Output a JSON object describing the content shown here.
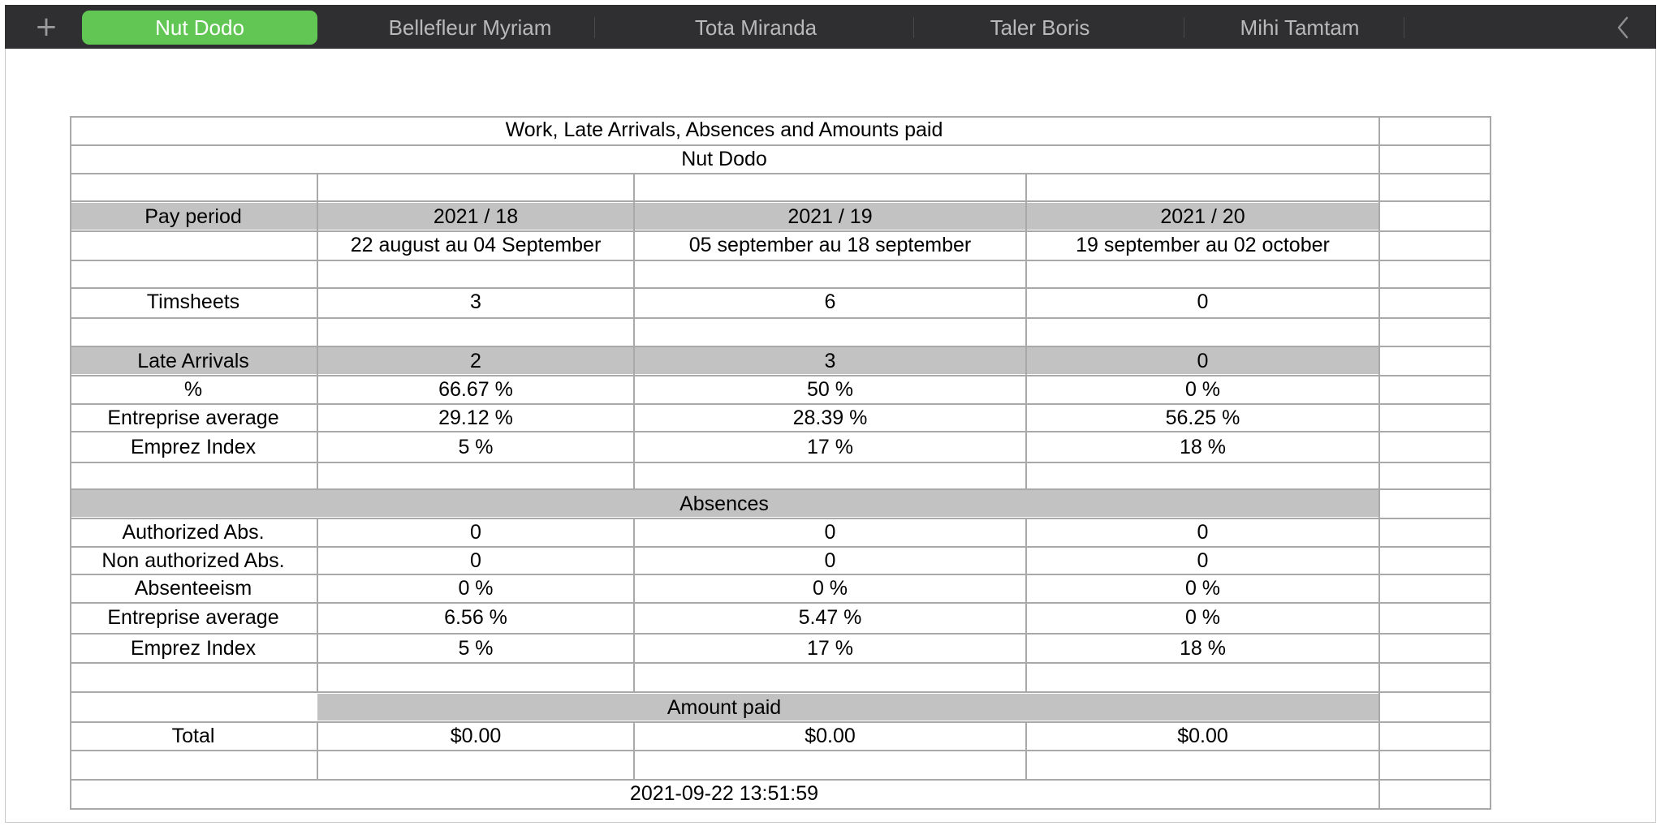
{
  "tabs": {
    "add_symbol": "+",
    "items": [
      "Nut Dodo",
      "Bellefleur Myriam",
      "Tota Miranda",
      "Taler Boris",
      "Mihi Tamtam"
    ],
    "active_index": 0
  },
  "report": {
    "title": "Work, Late Arrivals, Absences and Amounts paid",
    "employee": "Nut Dodo",
    "pay_period_label": "Pay period",
    "periods": [
      {
        "code": "2021 / 18",
        "range": "22 august  au 04 September"
      },
      {
        "code": "2021 / 19",
        "range": "05 september  au 18 september"
      },
      {
        "code": "2021 / 20",
        "range": "19 september  au 02 october"
      }
    ],
    "timesheets": {
      "label": "Timsheets",
      "values": [
        "3",
        "6",
        "0"
      ]
    },
    "late": {
      "label": "Late Arrivals",
      "values": [
        "2",
        "3",
        "0"
      ],
      "pct_label": "%",
      "pct": [
        "66.67 %",
        "50 %",
        "0 %"
      ],
      "avg_label": "Entreprise average",
      "avg": [
        "29.12 %",
        "28.39 %",
        "56.25 %"
      ],
      "index_label": "Emprez Index",
      "index": [
        "5 %",
        "17 %",
        "18 %"
      ]
    },
    "absences": {
      "header": "Absences",
      "authorized_label": "Authorized Abs.",
      "authorized": [
        "0",
        "0",
        "0"
      ],
      "non_authorized_label": "Non authorized Abs.",
      "non_authorized": [
        "0",
        "0",
        "0"
      ],
      "absenteeism_label": "Absenteeism",
      "absenteeism": [
        "0 %",
        "0 %",
        "0 %"
      ],
      "avg_label": "Entreprise average",
      "avg": [
        "6.56 %",
        "5.47 %",
        "0 %"
      ],
      "index_label": "Emprez Index",
      "index": [
        "5 %",
        "17 %",
        "18 %"
      ]
    },
    "amount": {
      "header": "Amount paid",
      "total_label": "Total",
      "totals": [
        "$0.00",
        "$0.00",
        "$0.00"
      ]
    },
    "timestamp": "2021-09-22 13:51:59"
  },
  "colors": {
    "tabbar_bg": "#2f2f31",
    "active_tab": "#62c654",
    "grey_band": "#c2c2c2",
    "grid": "#a9a9a9"
  }
}
